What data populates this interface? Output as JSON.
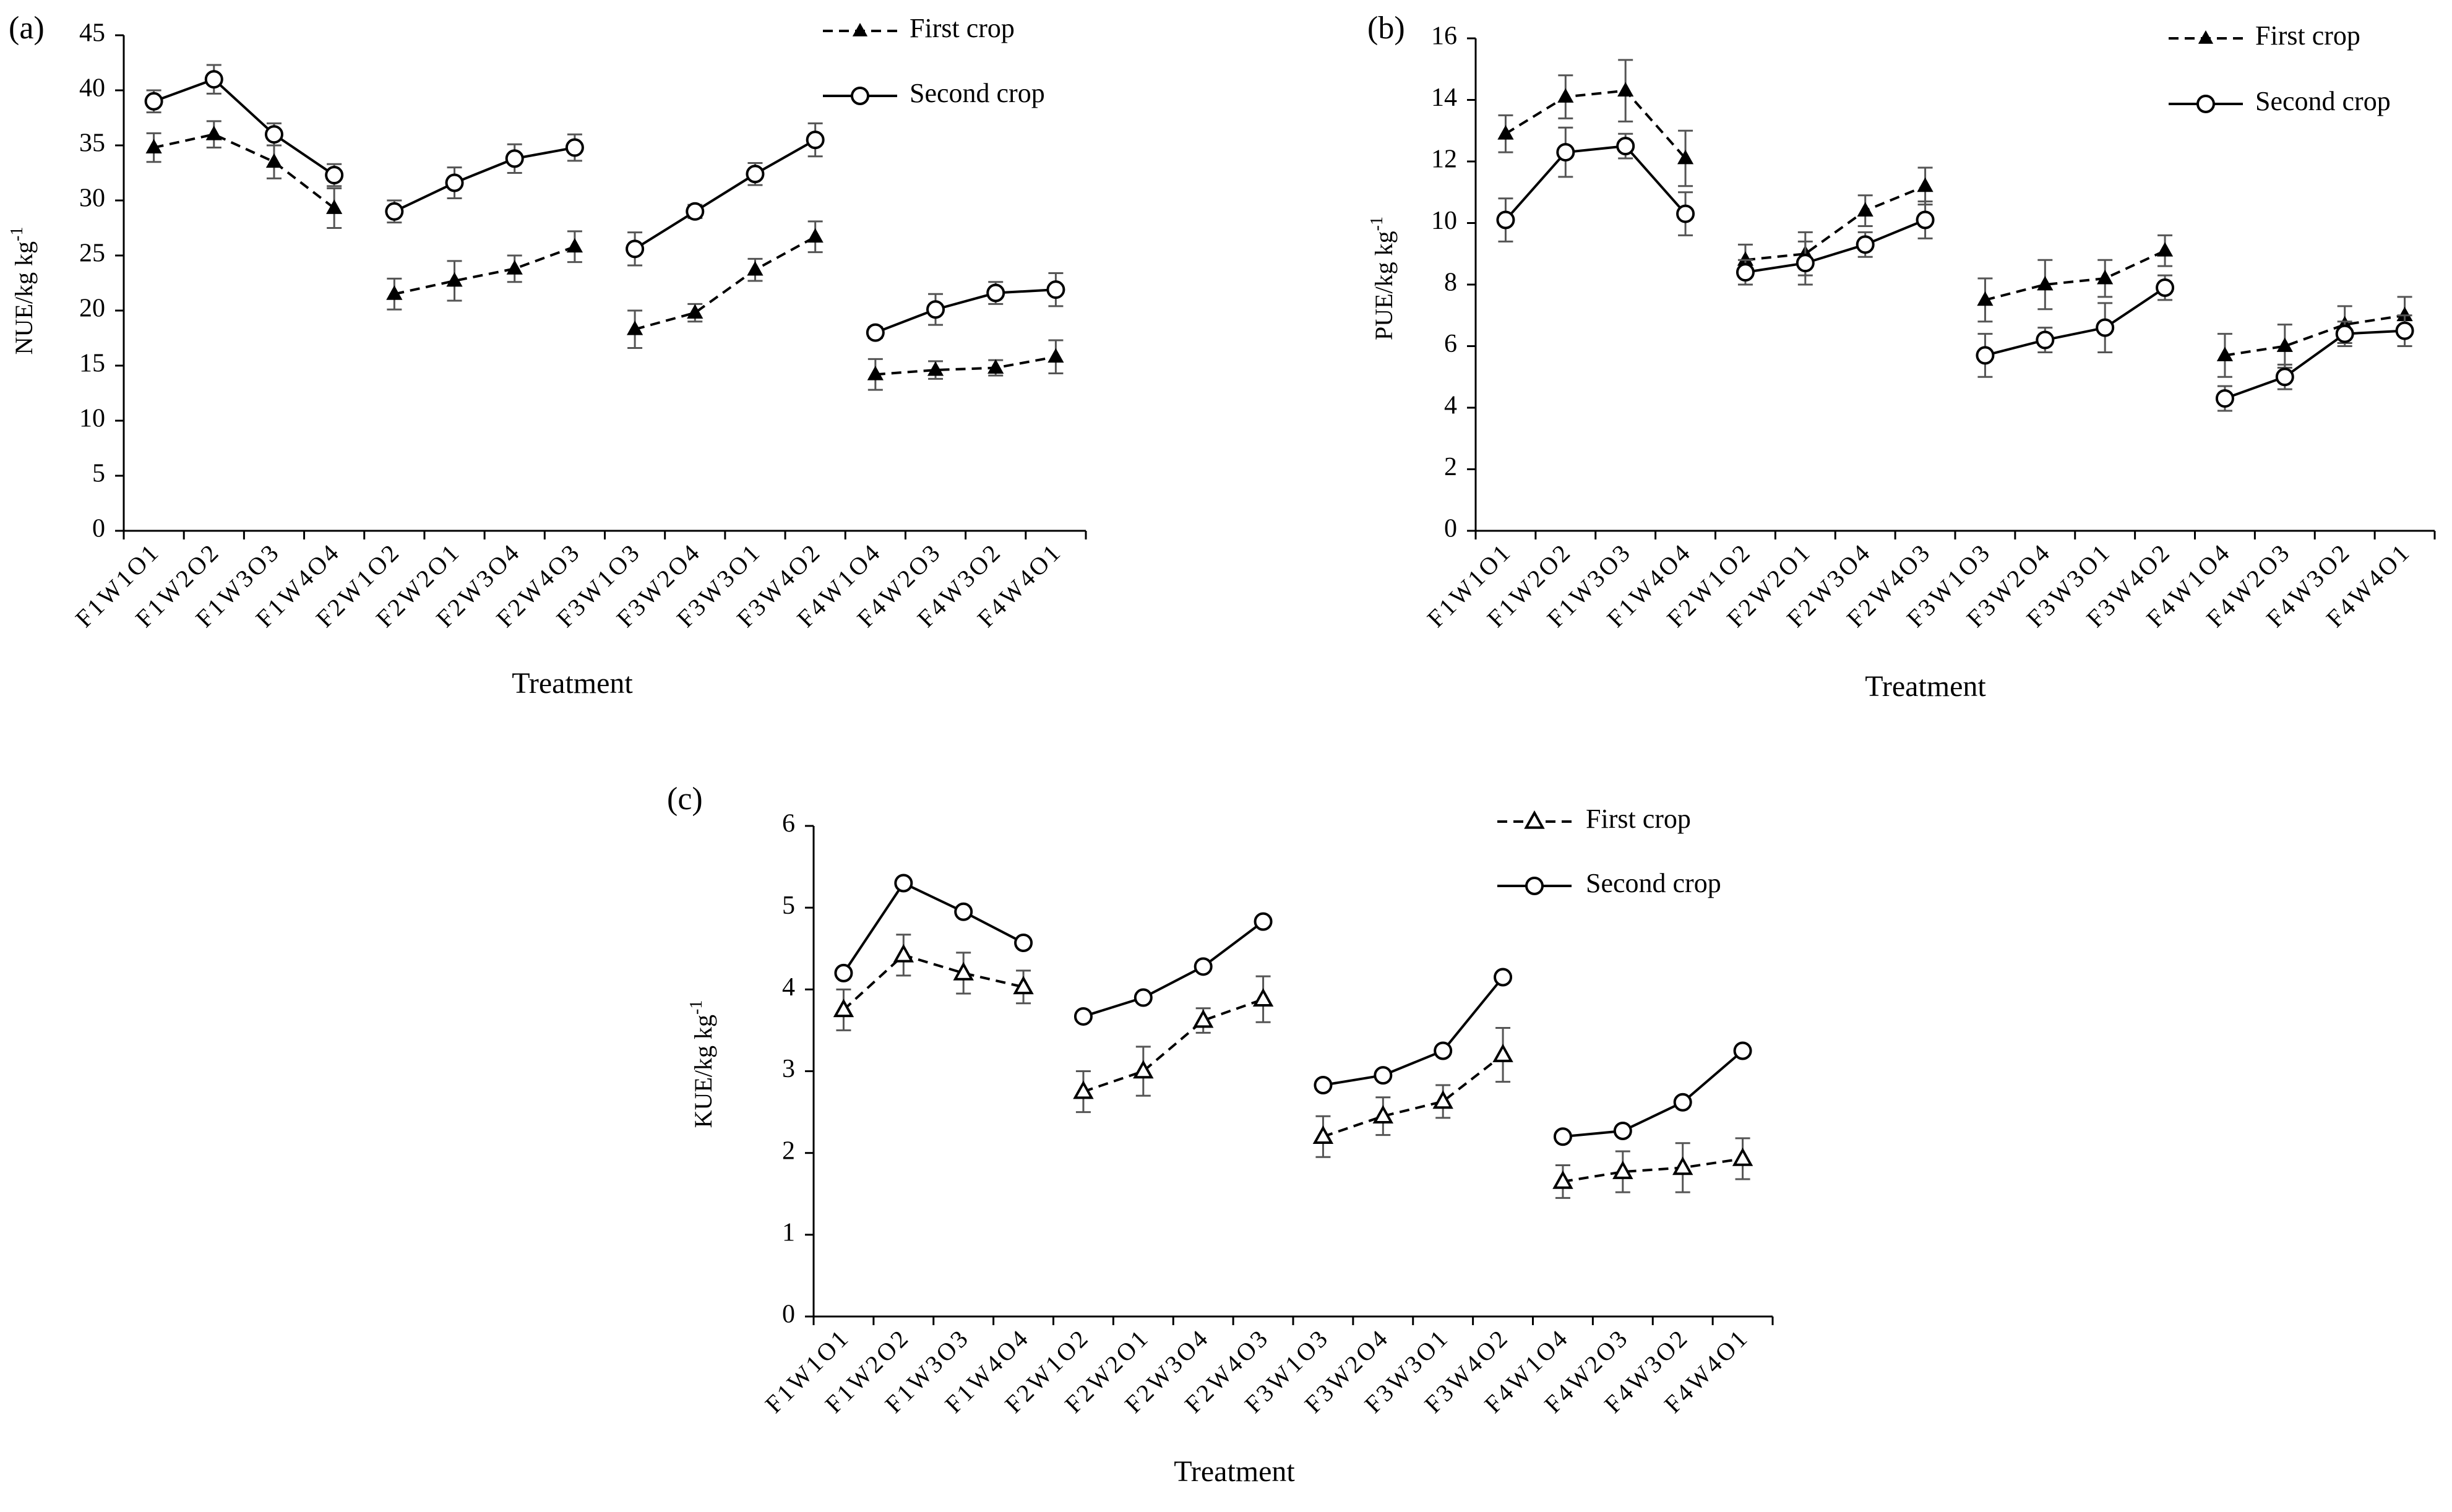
{
  "chart_data": [
    {
      "type": "line",
      "panel_label": "(a)",
      "xlabel": "Treatment",
      "ylabel": "NUE/kg kg",
      "ylabel_sup": "-1",
      "ylim": [
        0,
        45
      ],
      "yticks": [
        0,
        5,
        10,
        15,
        20,
        25,
        30,
        35,
        40,
        45
      ],
      "groups": [
        [
          0,
          1,
          2,
          3
        ],
        [
          4,
          5,
          6,
          7
        ],
        [
          8,
          9,
          10,
          11
        ],
        [
          12,
          13,
          14,
          15
        ]
      ],
      "categories": [
        "F1W1O1",
        "F1W2O2",
        "F1W3O3",
        "F1W4O4",
        "F2W1O2",
        "F2W2O1",
        "F2W3O4",
        "F2W4O3",
        "F3W1O3",
        "F3W2O4",
        "F3W3O1",
        "F3W4O2",
        "F4W1O4",
        "F4W2O3",
        "F4W3O2",
        "F4W4O1"
      ],
      "legend": "top-right",
      "series": [
        {
          "name": "First crop",
          "style": "dashed-triangle-filled",
          "values": [
            34.8,
            36.0,
            33.5,
            29.3,
            21.5,
            22.7,
            23.8,
            25.8,
            18.3,
            19.8,
            23.7,
            26.7,
            14.2,
            14.6,
            14.8,
            15.8
          ],
          "errors": [
            1.3,
            1.2,
            1.5,
            1.8,
            1.4,
            1.8,
            1.2,
            1.4,
            1.7,
            0.8,
            1.0,
            1.4,
            1.4,
            0.8,
            0.7,
            1.5
          ]
        },
        {
          "name": "Second crop",
          "style": "solid-circle-open",
          "values": [
            39.0,
            41.0,
            36.0,
            32.3,
            29.0,
            31.6,
            33.8,
            34.8,
            25.6,
            29.0,
            32.4,
            35.5,
            18.0,
            20.1,
            21.6,
            21.9
          ],
          "errors": [
            1.0,
            1.3,
            1.0,
            1.0,
            1.0,
            1.4,
            1.3,
            1.2,
            1.5,
            0.6,
            1.0,
            1.5,
            0.5,
            1.4,
            1.0,
            1.5
          ]
        }
      ]
    },
    {
      "type": "line",
      "panel_label": "(b)",
      "xlabel": "Treatment",
      "ylabel": "PUE/kg kg",
      "ylabel_sup": "-1",
      "ylim": [
        0,
        16
      ],
      "yticks": [
        0,
        2,
        4,
        6,
        8,
        10,
        12,
        14,
        16
      ],
      "groups": [
        [
          0,
          1,
          2,
          3
        ],
        [
          4,
          5,
          6,
          7
        ],
        [
          8,
          9,
          10,
          11
        ],
        [
          12,
          13,
          14,
          15
        ]
      ],
      "categories": [
        "F1W1O1",
        "F1W2O2",
        "F1W3O3",
        "F1W4O4",
        "F2W1O2",
        "F2W2O1",
        "F2W3O4",
        "F2W4O3",
        "F3W1O3",
        "F3W2O4",
        "F3W3O1",
        "F3W4O2",
        "F4W1O4",
        "F4W2O3",
        "F4W3O2",
        "F4W4O1"
      ],
      "legend": "top-right",
      "series": [
        {
          "name": "First crop",
          "style": "dashed-triangle-filled",
          "values": [
            12.9,
            14.1,
            14.3,
            12.1,
            8.8,
            9.0,
            10.4,
            11.2,
            7.5,
            8.0,
            8.2,
            9.1,
            5.7,
            6.0,
            6.7,
            7.0
          ],
          "errors": [
            0.6,
            0.7,
            1.0,
            0.9,
            0.5,
            0.7,
            0.5,
            0.6,
            0.7,
            0.8,
            0.6,
            0.5,
            0.7,
            0.7,
            0.6,
            0.6
          ]
        },
        {
          "name": "Second crop",
          "style": "solid-circle-open",
          "values": [
            10.1,
            12.3,
            12.5,
            10.3,
            8.4,
            8.7,
            9.3,
            10.1,
            5.7,
            6.2,
            6.6,
            7.9,
            4.3,
            5.0,
            6.4,
            6.5
          ],
          "errors": [
            0.7,
            0.8,
            0.4,
            0.7,
            0.4,
            0.7,
            0.4,
            0.6,
            0.7,
            0.4,
            0.8,
            0.4,
            0.4,
            0.4,
            0.4,
            0.5
          ]
        }
      ]
    },
    {
      "type": "line",
      "panel_label": "(c)",
      "xlabel": "Treatment",
      "ylabel": "KUE/kg kg",
      "ylabel_sup": "-1",
      "ylim": [
        0,
        6
      ],
      "yticks": [
        0,
        1,
        2,
        3,
        4,
        5,
        6
      ],
      "groups": [
        [
          0,
          1,
          2,
          3
        ],
        [
          4,
          5,
          6,
          7
        ],
        [
          8,
          9,
          10,
          11
        ],
        [
          12,
          13,
          14,
          15
        ]
      ],
      "categories": [
        "F1W1O1",
        "F1W2O2",
        "F1W3O3",
        "F1W4O4",
        "F2W1O2",
        "F2W2O1",
        "F2W3O4",
        "F2W4O3",
        "F3W1O3",
        "F3W2O4",
        "F3W3O1",
        "F3W4O2",
        "F4W1O4",
        "F4W2O3",
        "F4W3O2",
        "F4W4O1"
      ],
      "legend": "top-right",
      "series": [
        {
          "name": "First crop",
          "style": "dashed-triangle-open",
          "values": [
            3.75,
            4.42,
            4.2,
            4.03,
            2.75,
            3.0,
            3.62,
            3.88,
            2.2,
            2.45,
            2.63,
            3.2,
            1.65,
            1.77,
            1.82,
            1.93
          ],
          "errors": [
            0.25,
            0.25,
            0.25,
            0.2,
            0.25,
            0.3,
            0.15,
            0.28,
            0.25,
            0.23,
            0.2,
            0.33,
            0.2,
            0.25,
            0.3,
            0.25
          ]
        },
        {
          "name": "Second crop",
          "style": "solid-circle-open",
          "values": [
            4.2,
            5.3,
            4.95,
            4.57,
            3.67,
            3.9,
            4.28,
            4.83,
            2.83,
            2.95,
            3.25,
            4.15,
            2.2,
            2.27,
            2.62,
            3.25
          ]
        }
      ]
    }
  ]
}
